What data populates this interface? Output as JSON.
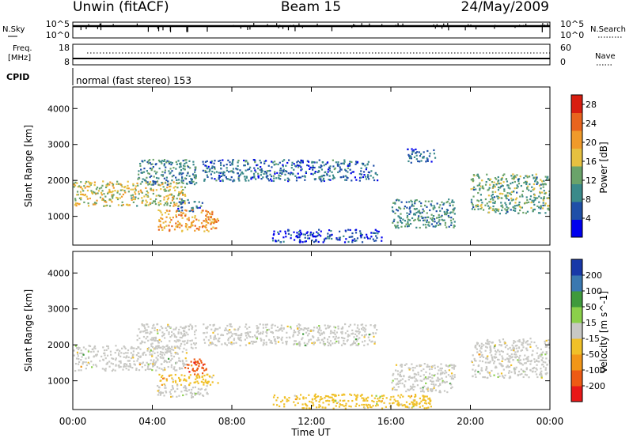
{
  "header": {
    "station": "Unwin (fitACF)",
    "beam": "Beam 15",
    "date": "24/May/2009"
  },
  "noise_panel": {
    "left_label": "N.Sky",
    "left_ticks": [
      "10^5",
      "10^0"
    ],
    "right_label": "N.Search",
    "right_ticks": [
      "10^5",
      "10^0"
    ]
  },
  "freq_panel": {
    "left_label_1": "Freq.",
    "left_label_2": "[MHz]",
    "left_ticks": [
      "18",
      "8"
    ],
    "right_label": "Nave",
    "right_ticks": [
      "60",
      "0"
    ]
  },
  "cpid": {
    "label": "CPID",
    "text": "normal (fast stereo) 153"
  },
  "x_ticks": [
    "00:00",
    "04:00",
    "08:00",
    "12:00",
    "16:00",
    "20:00",
    "00:00"
  ],
  "xlabel": "Time UT",
  "colors": {
    "power_scale": [
      "#0000ee",
      "#1f4fa8",
      "#3a8a8a",
      "#6aa36a",
      "#e6c040",
      "#f09a2a",
      "#e8641e",
      "#d81e10"
    ],
    "velocity_scale": [
      "#e81818",
      "#ee5a14",
      "#f29618",
      "#f0c028",
      "#c8c8c4",
      "#8bd04a",
      "#3f9a3c",
      "#3a78b0",
      "#1838a8"
    ],
    "grey": "#c8c8c4"
  },
  "chart_data": [
    {
      "type": "heatmap",
      "title": "",
      "xlabel": "Time UT",
      "ylabel": "Slant Range [km]",
      "y_ticks": [
        "1000",
        "2000",
        "3000",
        "4000"
      ],
      "ylim": [
        200,
        4600
      ],
      "xlim_hours": [
        0,
        24
      ],
      "colorbar": {
        "label": "Power [dB]",
        "ticks": [
          "4",
          "8",
          "12",
          "16",
          "20",
          "24",
          "28"
        ],
        "range": [
          0,
          30
        ]
      },
      "regions": [
        {
          "t": [
            0,
            5.7
          ],
          "range_km": [
            1300,
            2000
          ],
          "value_db": 16
        },
        {
          "t": [
            3.2,
            6.2
          ],
          "range_km": [
            1900,
            2600
          ],
          "value_db": 10
        },
        {
          "t": [
            5.2,
            6.5
          ],
          "range_km": [
            1150,
            1500
          ],
          "value_db": 8
        },
        {
          "t": [
            4.2,
            7.3
          ],
          "range_km": [
            600,
            1200
          ],
          "value_db": 20
        },
        {
          "t": [
            6.5,
            15.3
          ],
          "range_km": [
            2000,
            2600
          ],
          "value_db": 7
        },
        {
          "t": [
            16.0,
            19.2
          ],
          "range_km": [
            700,
            1500
          ],
          "value_db": 10
        },
        {
          "t": [
            16.8,
            18.2
          ],
          "range_km": [
            2500,
            2900
          ],
          "value_db": 6
        },
        {
          "t": [
            10.0,
            15.5
          ],
          "range_km": [
            300,
            650
          ],
          "value_db": 5
        },
        {
          "t": [
            20.0,
            24.0
          ],
          "range_km": [
            1100,
            2200
          ],
          "value_db": 12
        }
      ]
    },
    {
      "type": "heatmap",
      "title": "",
      "xlabel": "Time UT",
      "ylabel": "Slant Range [km]",
      "y_ticks": [
        "1000",
        "2000",
        "3000",
        "4000"
      ],
      "ylim": [
        200,
        4600
      ],
      "xlim_hours": [
        0,
        24
      ],
      "colorbar": {
        "label": "Velocity [m s^-1]",
        "ticks": [
          "-200",
          "-100",
          "-50",
          "-15",
          "15",
          "50",
          "100",
          "200"
        ],
        "range": [
          -250,
          250
        ]
      },
      "regions": [
        {
          "t": [
            0,
            5.7
          ],
          "range_km": [
            1300,
            2000
          ],
          "value_ms": 0
        },
        {
          "t": [
            3.2,
            6.2
          ],
          "range_km": [
            1900,
            2600
          ],
          "value_ms": 0
        },
        {
          "t": [
            5.6,
            6.7
          ],
          "range_km": [
            1200,
            1650
          ],
          "value_ms": -180
        },
        {
          "t": [
            4.3,
            7.3
          ],
          "range_km": [
            900,
            1200
          ],
          "value_ms": -80
        },
        {
          "t": [
            4.2,
            6.8
          ],
          "range_km": [
            550,
            900
          ],
          "value_ms": 0
        },
        {
          "t": [
            6.5,
            15.3
          ],
          "range_km": [
            2000,
            2600
          ],
          "value_ms": 0
        },
        {
          "t": [
            16.0,
            19.2
          ],
          "range_km": [
            700,
            1500
          ],
          "value_ms": 0
        },
        {
          "t": [
            10.0,
            18.0
          ],
          "range_km": [
            250,
            650
          ],
          "value_ms": -30
        },
        {
          "t": [
            20.0,
            24.0
          ],
          "range_km": [
            1100,
            2200
          ],
          "value_ms": 0
        }
      ]
    }
  ]
}
